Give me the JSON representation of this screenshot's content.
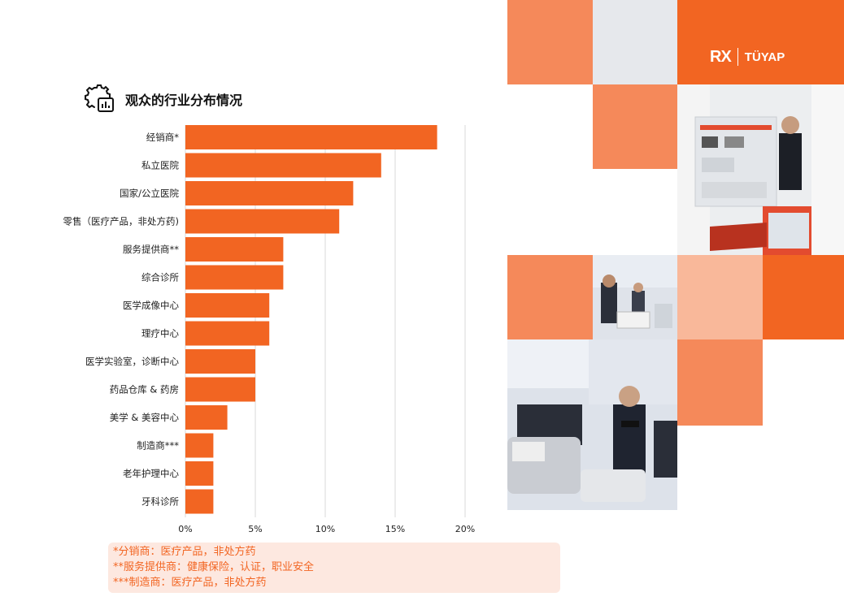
{
  "title": "观众的行业分布情况",
  "icons": {
    "title_icon": "gear-chart-icon"
  },
  "colors": {
    "bar": "#f26522",
    "accent": "#f26522",
    "light_orange": "#f5895a",
    "pale_orange": "#f9b89a",
    "grey": "#e6e8ec",
    "grid": "#d9d9d9"
  },
  "chart_data": {
    "type": "bar",
    "orientation": "horizontal",
    "title": "观众的行业分布情况",
    "xlabel": "",
    "ylabel": "",
    "categories": [
      "经销商*",
      "私立医院",
      "国家/公立医院",
      "零售（医疗产品，非处方药)",
      "服务提供商**",
      "综合诊所",
      "医学成像中心",
      "理疗中心",
      "医学实验室，诊断中心",
      "药品仓库 & 药房",
      "美学 & 美容中心",
      "制造商***",
      "老年护理中心",
      "牙科诊所"
    ],
    "values": [
      18,
      14,
      12,
      11,
      7,
      7,
      6,
      6,
      5,
      5,
      3,
      2,
      2,
      2
    ],
    "xlim": [
      0,
      20
    ],
    "ticks": [
      "0%",
      "5%",
      "10%",
      "15%",
      "20%"
    ],
    "grid": true,
    "legend": "none"
  },
  "footnotes": [
    "*分销商：医疗产品，非处方药",
    "**服务提供商：健康保险，认证，职业安全",
    "***制造商：医疗产品，非处方药"
  ],
  "logo": {
    "rx": "RX",
    "tuyap": "TÜYAP"
  }
}
